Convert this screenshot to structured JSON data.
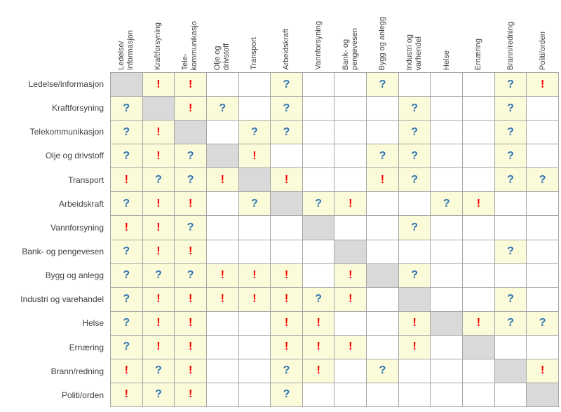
{
  "colors": {
    "filled_cell_bg": "#FBFBD9",
    "diagonal_cell_bg": "#D9D9D9",
    "grid_line": "#A6A6A6",
    "exclamation": "#FF0000",
    "question": "#2E74B5",
    "label_text": "#404040"
  },
  "symbols": {
    "exclamation": "!",
    "question": "?"
  },
  "chart_data": {
    "type": "heatmap",
    "title": "",
    "legend_position": "none",
    "grid": true,
    "col_labels": [
      "Ledelse/\ninformasjon",
      "Kraftforsyning",
      "Tele-\nkommunikasjo",
      "Olje og\ndrivstoff",
      "Transport",
      "Arbeidskraft",
      "Vannforsyning",
      "Bank- og\npengevesen",
      "Bygg og anlegg",
      "Industri og\nvarhendel",
      "Helse",
      "Ernæring",
      "Brann/redning",
      "Politi/orden"
    ],
    "row_labels": [
      "Ledelse/informasjon",
      "Kraftforsyning",
      "Telekommunikasjon",
      "Olje og drivstoff",
      "Transport",
      "Arbeidskraft",
      "Vannforsyning",
      "Bank- og pengevesen",
      "Bygg og anlegg",
      "Industri og varehandel",
      "Helse",
      "Ernæring",
      "Brann/redning",
      "Politi/orden"
    ],
    "cell_values": [
      [
        "S",
        "!",
        "!",
        "",
        "",
        "?",
        "",
        "",
        "?",
        "",
        "",
        "",
        "?",
        "!"
      ],
      [
        "?",
        "S",
        "!",
        "?",
        "",
        "?",
        "",
        "",
        "",
        "?",
        "",
        "",
        "?",
        ""
      ],
      [
        "?",
        "!",
        "S",
        "",
        "?",
        "?",
        "",
        "",
        "",
        "?",
        "",
        "",
        "?",
        ""
      ],
      [
        "?",
        "!",
        "?",
        "S",
        "!",
        "",
        "",
        "",
        "?",
        "?",
        "",
        "",
        "?",
        ""
      ],
      [
        "!",
        "?",
        "?",
        "!",
        "S",
        "!",
        "",
        "",
        "!",
        "?",
        "",
        "",
        "?",
        "?"
      ],
      [
        "?",
        "!",
        "!",
        "",
        "?",
        "S",
        "?",
        "!",
        "",
        "",
        "?",
        "!",
        "",
        ""
      ],
      [
        "!",
        "!",
        "?",
        "",
        "",
        "",
        "S",
        "",
        "",
        "?",
        "",
        "",
        "",
        ""
      ],
      [
        "?",
        "!",
        "!",
        "",
        "",
        "",
        "",
        "S",
        "",
        "",
        "",
        "",
        "?",
        ""
      ],
      [
        "?",
        "?",
        "?",
        "!",
        "!",
        "!",
        "",
        "!",
        "S",
        "?",
        "",
        "",
        "",
        ""
      ],
      [
        "?",
        "!",
        "!",
        "!",
        "!",
        "!",
        "?",
        "!",
        "",
        "S",
        "",
        "",
        "?",
        ""
      ],
      [
        "?",
        "!",
        "!",
        "",
        "",
        "!",
        "!",
        "",
        "",
        "!",
        "S",
        "!",
        "?",
        "?"
      ],
      [
        "?",
        "!",
        "!",
        "",
        "",
        "!",
        "!",
        "!",
        "",
        "!",
        "",
        "S",
        "",
        ""
      ],
      [
        "!",
        "?",
        "!",
        "",
        "",
        "?",
        "!",
        "",
        "?",
        "",
        "",
        "",
        "S",
        "!"
      ],
      [
        "!",
        "?",
        "!",
        "",
        "",
        "?",
        "",
        "",
        "",
        "",
        "",
        "",
        "",
        "S"
      ]
    ]
  }
}
